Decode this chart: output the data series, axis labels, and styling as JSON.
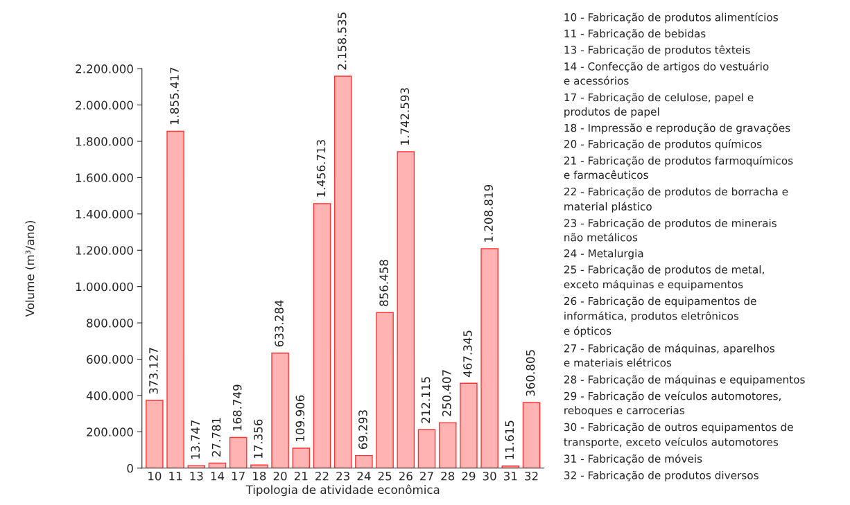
{
  "chart_data": {
    "type": "bar",
    "xlabel": "Tipologia de atividade econômica",
    "ylabel": "Volume (m³/ano)",
    "categories": [
      "10",
      "11",
      "13",
      "14",
      "17",
      "18",
      "20",
      "21",
      "22",
      "23",
      "24",
      "25",
      "26",
      "27",
      "28",
      "29",
      "30",
      "31",
      "32"
    ],
    "values": [
      373127,
      1855417,
      13747,
      27781,
      168749,
      17356,
      633284,
      109906,
      1456713,
      2158535,
      69293,
      856458,
      1742593,
      212115,
      250407,
      467345,
      1208819,
      11615,
      360805
    ],
    "value_labels": [
      "373.127",
      "1.855.417",
      "13.747",
      "27.781",
      "168.749",
      "17.356",
      "633.284",
      "109.906",
      "1.456.713",
      "2.158.535",
      "69.293",
      "856.458",
      "1.742.593",
      "212.115",
      "250.407",
      "467.345",
      "1.208.819",
      "11.615",
      "360.805"
    ],
    "color": "#ffb3b3",
    "ylim": [
      0,
      2200000
    ],
    "yticks": [
      {
        "value": 0,
        "label": "0"
      },
      {
        "value": 200000,
        "label": "200.000"
      },
      {
        "value": 400000,
        "label": "400.000"
      },
      {
        "value": 600000,
        "label": "600.000"
      },
      {
        "value": 800000,
        "label": "800.000"
      },
      {
        "value": 1000000,
        "label": "1.000.000"
      },
      {
        "value": 1200000,
        "label": "1.200.000"
      },
      {
        "value": 1400000,
        "label": "1.400.000"
      },
      {
        "value": 1600000,
        "label": "1.600.000"
      },
      {
        "value": 1800000,
        "label": "1.800.000"
      },
      {
        "value": 2000000,
        "label": "2.000.000"
      },
      {
        "value": 2200000,
        "label": "2.200.000"
      }
    ],
    "grid": false,
    "legend": false,
    "annotations": [
      "10 - Fabricação de produtos alimentícios",
      "11 - Fabricação de bebidas",
      "13 - Fabricação de produtos têxteis",
      "14 - Confecção de artigos do vestuário\ne acessórios",
      "17 - Fabricação de celulose, papel e\nprodutos de papel",
      "18 - Impressão e reprodução de gravações",
      "20 - Fabricação de produtos químicos",
      "21 - Fabricação de produtos farmoquímicos\ne farmacêuticos",
      "22 - Fabricação de produtos de borracha e\nmaterial plástico",
      "23 - Fabricação de produtos de minerais\nnão metálicos",
      "24 - Metalurgia",
      "25 - Fabricação de produtos de metal,\nexceto máquinas e equipamentos",
      "26 - Fabricação de equipamentos de\ninformática, produtos eletrônicos\ne ópticos",
      "27 - Fabricação de máquinas, aparelhos\ne materiais elétricos",
      "28 - Fabricação de máquinas e equipamentos",
      "29 - Fabricação de veículos automotores,\nreboques e carrocerias",
      "30 - Fabricação de outros equipamentos de\ntransporte, exceto veículos automotores",
      "31 - Fabricação de móveis",
      "32 - Fabricação de produtos diversos"
    ]
  }
}
